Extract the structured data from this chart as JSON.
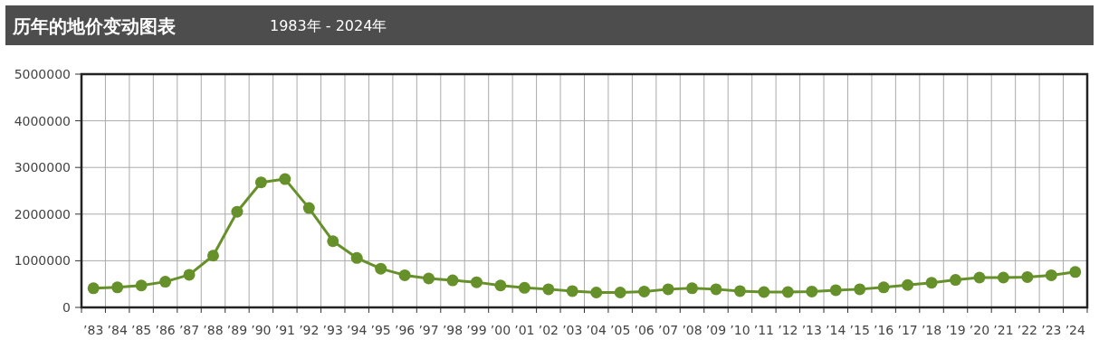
{
  "chart_data": {
    "type": "line",
    "title": "历年的地价变动图表",
    "subtitle": "1983年 - 2024年",
    "categories": [
      "’83",
      "’84",
      "’85",
      "’86",
      "’87",
      "’88",
      "’89",
      "’90",
      "’91",
      "’92",
      "’93",
      "’94",
      "’95",
      "’96",
      "’97",
      "’98",
      "’99",
      "’00",
      "’01",
      "’02",
      "’03",
      "’04",
      "’05",
      "’06",
      "’07",
      "’08",
      "’09",
      "’10",
      "’11",
      "’12",
      "’13",
      "’14",
      "’15",
      "’16",
      "’17",
      "’18",
      "’19",
      "’20",
      "’21",
      "’22",
      "’23",
      "’24"
    ],
    "series": [
      {
        "color": "#66902a",
        "values": [
          410000,
          430000,
          470000,
          550000,
          700000,
          1110000,
          2050000,
          2680000,
          2750000,
          2130000,
          1420000,
          1060000,
          830000,
          690000,
          620000,
          580000,
          540000,
          470000,
          420000,
          390000,
          350000,
          320000,
          320000,
          340000,
          390000,
          410000,
          390000,
          350000,
          330000,
          330000,
          340000,
          370000,
          390000,
          430000,
          480000,
          530000,
          590000,
          640000,
          640000,
          650000,
          690000,
          760000
        ]
      }
    ],
    "ylim": [
      0,
      5000000
    ],
    "yticks": [
      0,
      1000000,
      2000000,
      3000000,
      4000000,
      5000000
    ],
    "grid": true,
    "marker": "circle",
    "line_style": "solid"
  }
}
